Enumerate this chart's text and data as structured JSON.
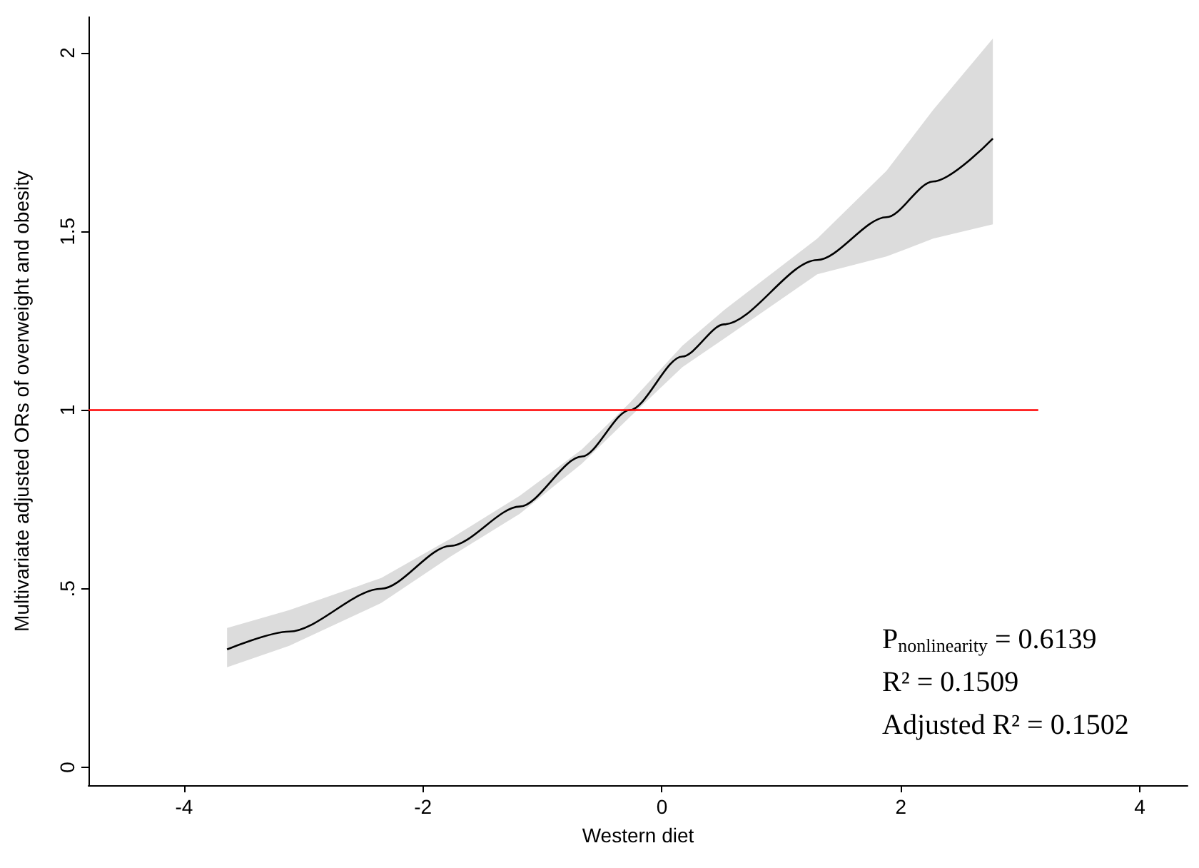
{
  "chart_data": {
    "type": "line",
    "xlabel": "Western diet",
    "ylabel": "Multivariate adjusted ORs of overweight and obesity",
    "xlim": [
      -4.8,
      4.4
    ],
    "xticks": [
      -4,
      -2,
      0,
      2,
      4
    ],
    "ylim": [
      -0.05,
      2.1
    ],
    "yticks": [
      0,
      {
        "value": 0.5,
        "label": ".5"
      },
      1,
      1.5,
      2
    ],
    "grid": false,
    "marker": "none",
    "line_style": "solid",
    "series": [
      {
        "color": "#000000",
        "x": [
          -3.64,
          -3.12,
          -2.35,
          -1.77,
          -1.19,
          -0.67,
          -0.27,
          0.17,
          0.52,
          1.3,
          1.88,
          2.27,
          2.77
        ],
        "values": [
          0.33,
          0.38,
          0.5,
          0.62,
          0.73,
          0.87,
          1.0,
          1.15,
          1.24,
          1.42,
          1.54,
          1.64,
          1.76
        ],
        "lower": [
          0.28,
          0.34,
          0.46,
          0.59,
          0.71,
          0.85,
          0.98,
          1.12,
          1.2,
          1.38,
          1.43,
          1.48,
          1.52
        ],
        "upper": [
          0.39,
          0.44,
          0.53,
          0.64,
          0.76,
          0.89,
          1.02,
          1.18,
          1.28,
          1.48,
          1.67,
          1.84,
          2.04
        ]
      },
      {
        "color": "#ff0000",
        "x": [
          -4.8,
          3.15
        ],
        "values": [
          1,
          1
        ]
      }
    ],
    "annotations": [
      "P$_{nonlinearity}$ = 0.6139",
      "R² = 0.1509",
      "Adjusted R² = 0.1502"
    ]
  }
}
